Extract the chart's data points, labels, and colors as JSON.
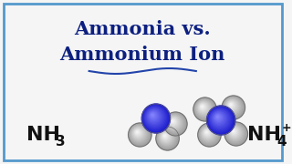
{
  "bg_color": "#f5f5f5",
  "border_color": "#5599cc",
  "title_line1": "Ammonia vs.",
  "title_line2": "Ammonium Ion",
  "title_color": "#0d2080",
  "formula_color": "#111111",
  "N_color_dark": "#1a1aaa",
  "N_color_light": "#4444ff",
  "H_color_dark": "#aaaaaa",
  "H_color_light": "#f0f0f0",
  "divider_color": "#2244aa",
  "title_fontsize": 15,
  "formula_fontsize": 16,
  "sub_fontsize": 11
}
